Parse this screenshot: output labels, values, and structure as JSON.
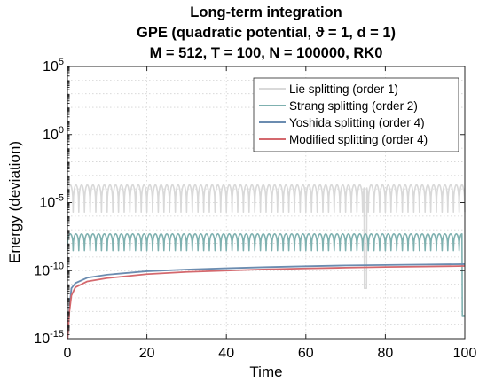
{
  "chart_data": {
    "type": "line",
    "title": [
      "Long-term integration",
      "GPE (quadratic potential, ϑ = 1, d = 1)",
      "M = 512, T = 100, N = 100000, RK0"
    ],
    "xlabel": "Time",
    "ylabel": "Energy (deviation)",
    "xlim": [
      0,
      100
    ],
    "ylim": [
      1e-15,
      100000.0
    ],
    "yscale": "log",
    "xticks": [
      "0",
      "20",
      "40",
      "60",
      "80",
      "100"
    ],
    "yticks": [
      {
        "base": "10",
        "exp": "-15"
      },
      {
        "base": "10",
        "exp": "-10"
      },
      {
        "base": "10",
        "exp": "-5"
      },
      {
        "base": "10",
        "exp": "0"
      },
      {
        "base": "10",
        "exp": "5"
      }
    ],
    "grid": true,
    "legend_position": "top-right",
    "series": [
      {
        "name": "Lie splitting (order 1)",
        "color": "#d9d9d9",
        "behavior": "oscillating",
        "oscillation_high": 0.0002,
        "oscillation_low": 2e-06,
        "oscillation_count": 70,
        "min_dip": {
          "x": 75,
          "y": 5e-12
        }
      },
      {
        "name": "Strang splitting (order 2)",
        "color": "#7fb1b0",
        "behavior": "oscillating",
        "oscillation_high": 5e-08,
        "oscillation_low": 3e-09,
        "oscillation_count": 70,
        "end_drop": {
          "x": 100,
          "y": 5e-14
        }
      },
      {
        "name": "Yoshida splitting (order 4)",
        "color": "#6b8cb0",
        "behavior": "growing",
        "x": [
          0.05,
          0.5,
          1,
          2,
          5,
          10,
          20,
          30,
          40,
          50,
          60,
          70,
          80,
          90,
          100
        ],
        "y": [
          1e-15,
          2e-13,
          5e-12,
          1.2e-11,
          3e-11,
          5e-11,
          9e-11,
          1.2e-10,
          1.5e-10,
          1.8e-10,
          2.1e-10,
          2.4e-10,
          2.6e-10,
          2.8e-10,
          3e-10
        ]
      },
      {
        "name": "Modified splitting (order 4)",
        "color": "#d4686d",
        "behavior": "growing",
        "x": [
          0.05,
          0.5,
          1,
          2,
          5,
          10,
          20,
          30,
          40,
          50,
          60,
          70,
          80,
          90,
          100
        ],
        "y": [
          1e-15,
          1e-13,
          1.5e-12,
          6e-12,
          1.6e-11,
          2.8e-11,
          5.5e-11,
          8e-11,
          1e-10,
          1.25e-10,
          1.45e-10,
          1.65e-10,
          1.85e-10,
          2e-10,
          2.2e-10
        ]
      }
    ]
  }
}
